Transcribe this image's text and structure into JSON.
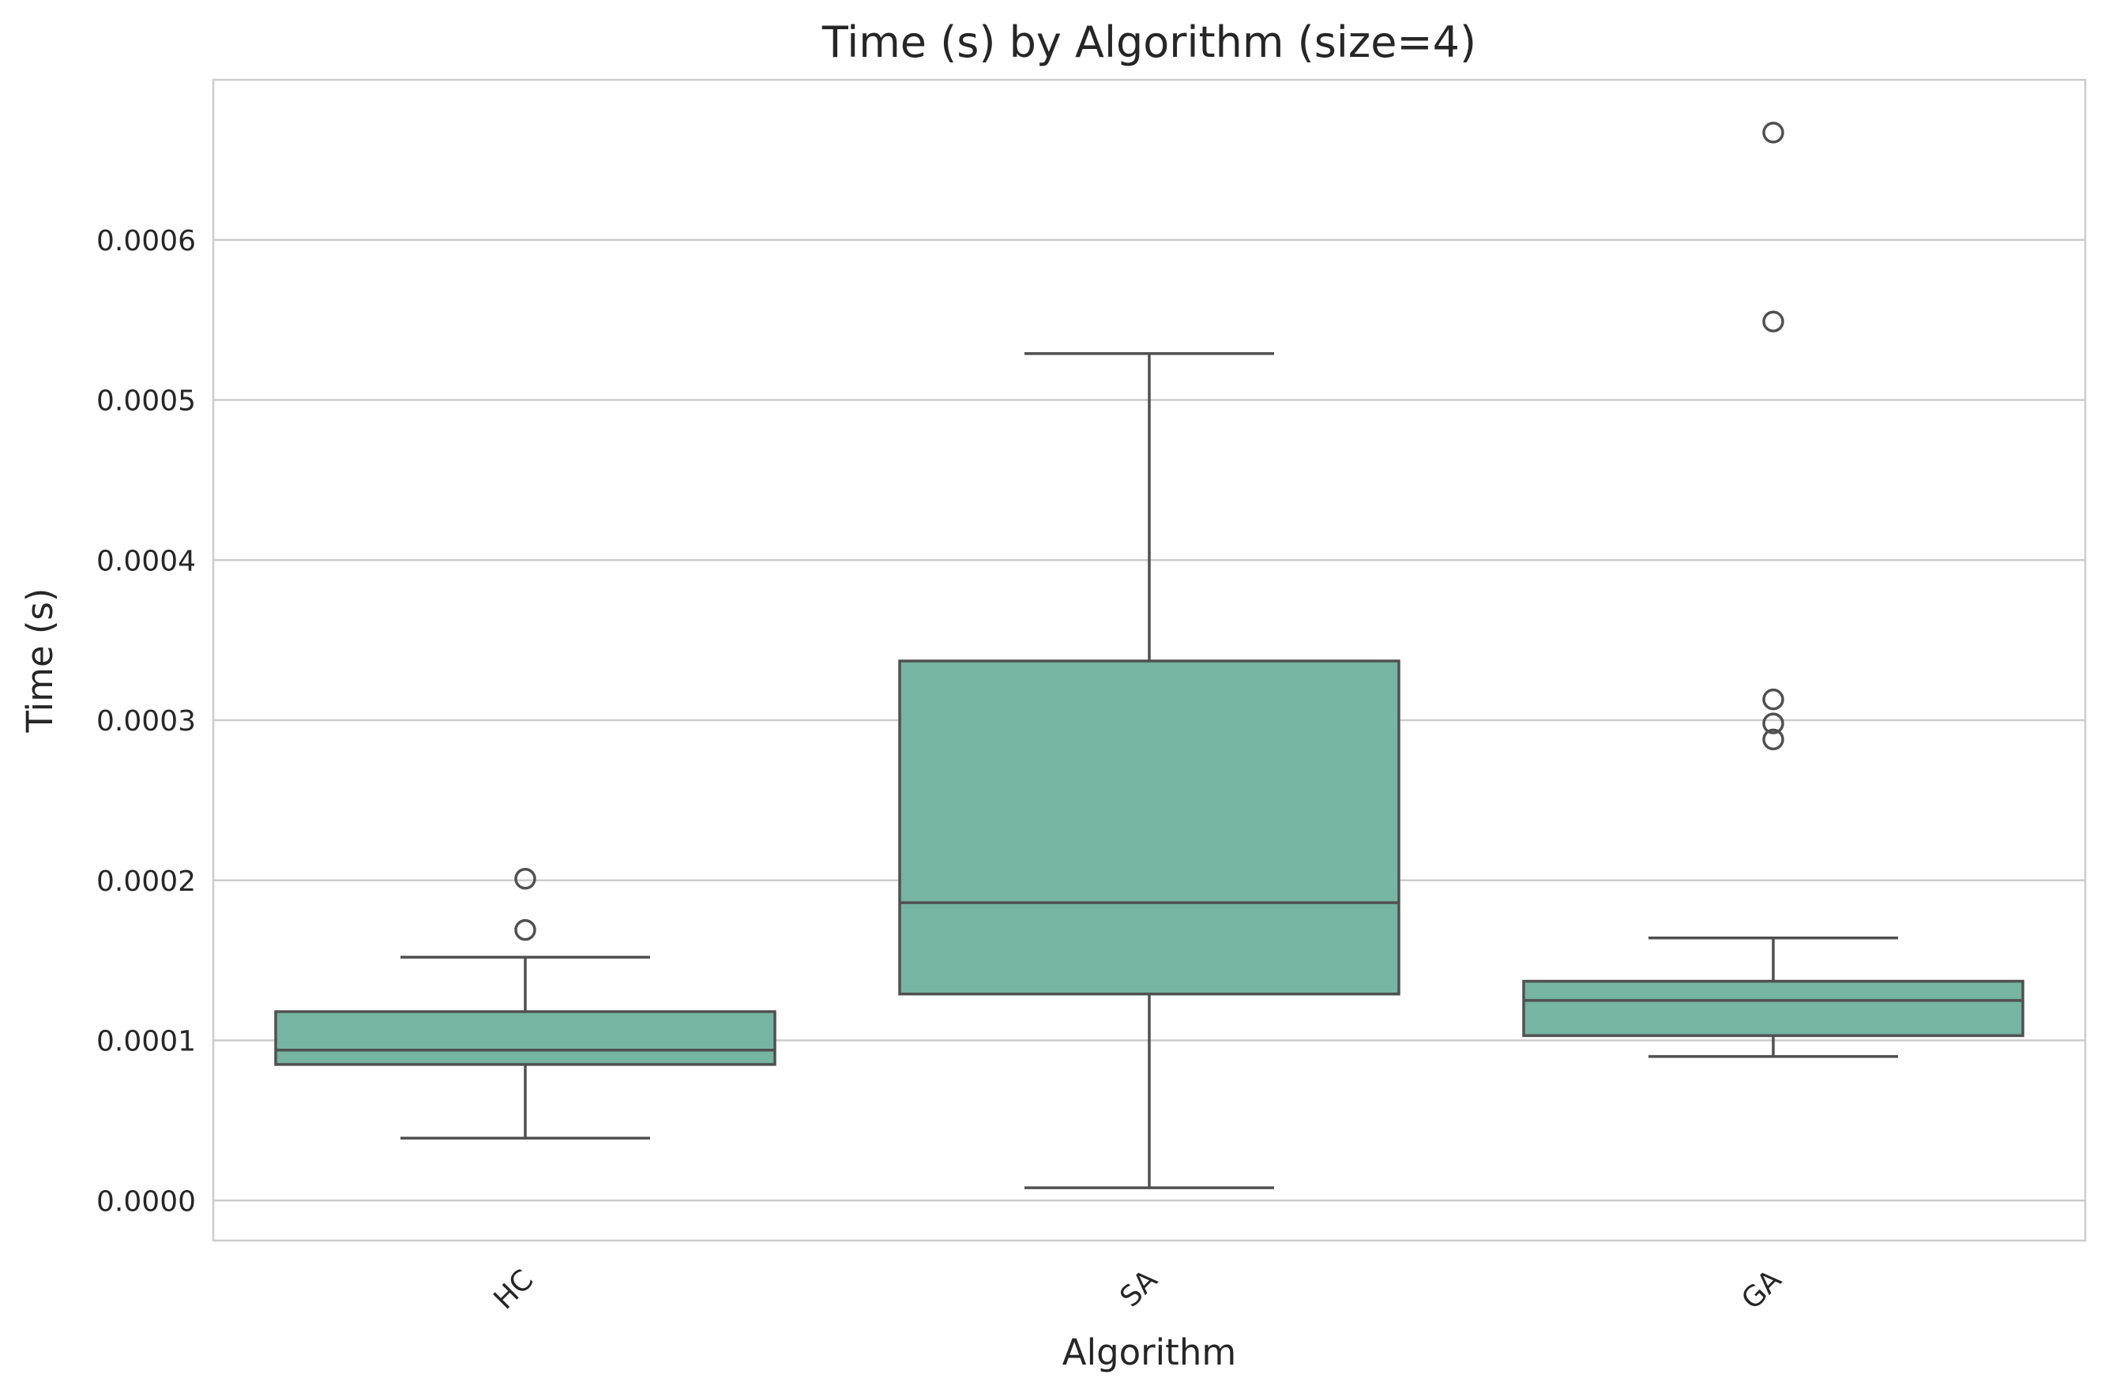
{
  "chart_data": {
    "type": "box",
    "title": "Time (s) by Algorithm (size=4)",
    "xlabel": "Algorithm",
    "ylabel": "Time (s)",
    "ylim": [
      -2.5e-05,
      0.0007
    ],
    "yticks": [
      0.0,
      0.0001,
      0.0002,
      0.0003,
      0.0004,
      0.0005,
      0.0006
    ],
    "ytick_labels": [
      "0.0000",
      "0.0001",
      "0.0002",
      "0.0003",
      "0.0004",
      "0.0005",
      "0.0006"
    ],
    "grid": true,
    "box_color": "#75b5a1",
    "line_color": "#505050",
    "categories": [
      "HC",
      "SA",
      "GA"
    ],
    "boxes": [
      {
        "category": "HC",
        "whisker_low": 3.9e-05,
        "q1": 8.5e-05,
        "median": 9.4e-05,
        "q3": 0.000118,
        "whisker_high": 0.000152,
        "outliers": [
          0.000169,
          0.000201
        ]
      },
      {
        "category": "SA",
        "whisker_low": 8e-06,
        "q1": 0.000129,
        "median": 0.000186,
        "q3": 0.000337,
        "whisker_high": 0.000529,
        "outliers": []
      },
      {
        "category": "GA",
        "whisker_low": 9e-05,
        "q1": 0.000103,
        "median": 0.000125,
        "q3": 0.000137,
        "whisker_high": 0.000164,
        "outliers": [
          0.000288,
          0.000298,
          0.000313,
          0.000549,
          0.000667
        ]
      }
    ]
  }
}
